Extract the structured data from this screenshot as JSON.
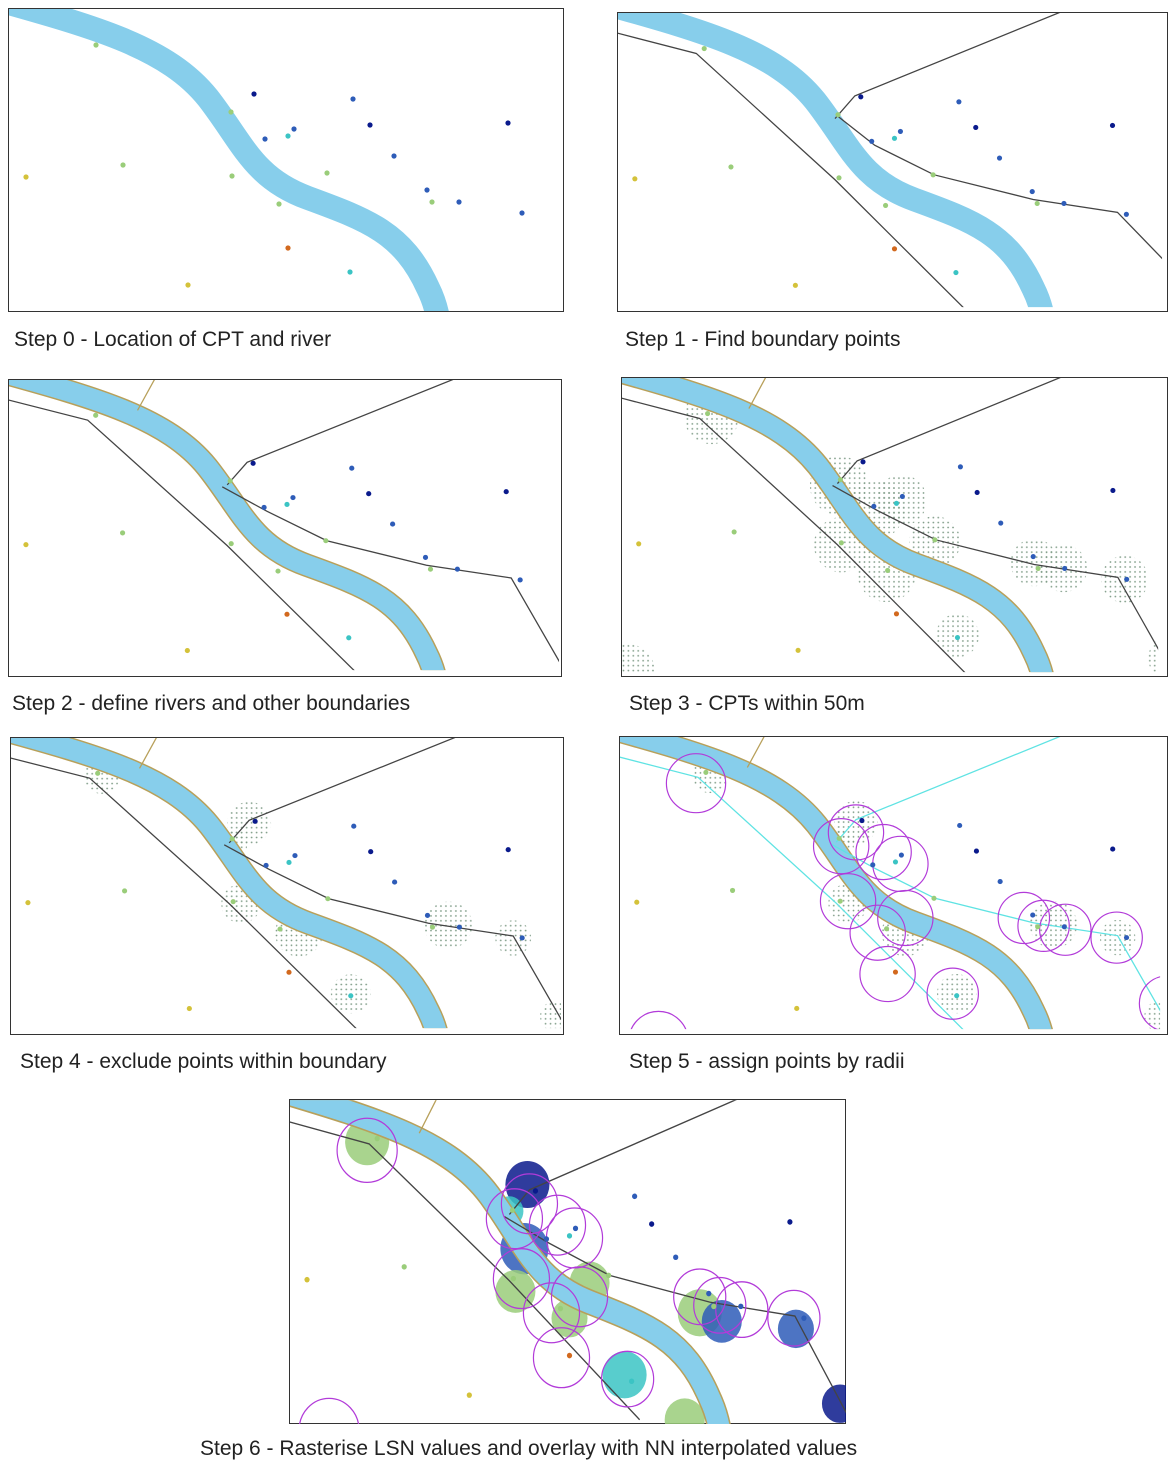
{
  "captions": {
    "step0": "Step 0 - Location of CPT and river",
    "step1": "Step 1 - Find boundary points",
    "step2": "Step 2 - define rivers and other boundaries",
    "step3": "Step 3 - CPTs within 50m",
    "step4": "Step 4 - exclude points within boundary",
    "step5": "Step 5 - assign points by radii",
    "step6": "Step 6 - Rasterise LSN values and overlay with NN interpolated values"
  },
  "colors": {
    "river": "#87CEEB",
    "river_bank": "#B8A05A",
    "boundary": "#444444",
    "assign_line": "#5FE3E3",
    "radius_circle": "#B23BD9",
    "stipple": "#7E9B86",
    "point_navy": "#0A1A8C",
    "point_blue": "#2E5CB8",
    "point_cyan": "#3BC4C4",
    "point_green": "#9ACD7A",
    "point_yellow": "#D4C23A",
    "point_orange": "#D2691E"
  }
}
